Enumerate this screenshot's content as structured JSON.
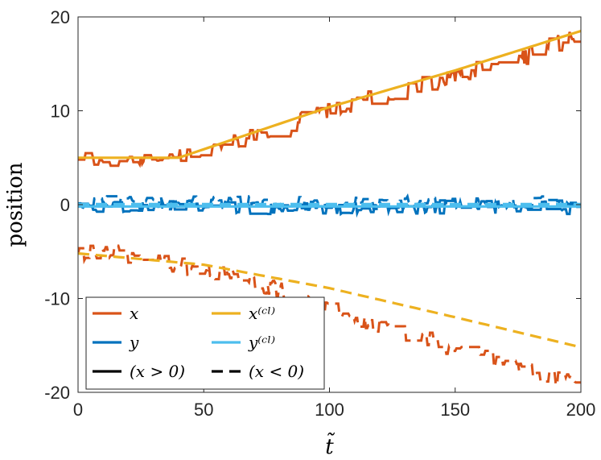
{
  "chart_data": {
    "type": "line",
    "xlabel": "t̃",
    "ylabel": "position",
    "xlim": [
      0,
      200
    ],
    "ylim": [
      -20,
      20
    ],
    "xticks": [
      0,
      50,
      100,
      150,
      200
    ],
    "yticks": [
      20,
      10,
      0,
      -10,
      -20
    ],
    "ytick_labels": [
      "20",
      "10",
      "0",
      "-10",
      "-20"
    ],
    "colors": {
      "x": "#D95319",
      "xcl": "#EDB120",
      "y": "#0072BD",
      "ycl": "#4DBEEE",
      "ink": "#000000"
    },
    "series": [
      {
        "name": "x",
        "branch": "x > 0",
        "style": "solid",
        "color_key": "x",
        "noisy": true,
        "noise": 0.45,
        "keypoints": [
          [
            0,
            4.8
          ],
          [
            35,
            4.7
          ],
          [
            60,
            6.5
          ],
          [
            100,
            10
          ],
          [
            150,
            13.8
          ],
          [
            180,
            16
          ],
          [
            200,
            18.3
          ]
        ]
      },
      {
        "name": "x(cl)",
        "branch": "x > 0",
        "style": "solid",
        "color_key": "xcl",
        "noisy": false,
        "keypoints": [
          [
            0,
            5.0
          ],
          [
            40,
            5.0
          ],
          [
            60,
            6.8
          ],
          [
            100,
            10.4
          ],
          [
            150,
            14.3
          ],
          [
            200,
            18.5
          ]
        ]
      },
      {
        "name": "y",
        "branch": "x > 0",
        "style": "solid",
        "color_key": "y",
        "noisy": true,
        "noise": 0.35,
        "keypoints": [
          [
            0,
            -0.3
          ],
          [
            200,
            -0.3
          ]
        ]
      },
      {
        "name": "y(cl)",
        "branch": "x > 0",
        "style": "solid",
        "color_key": "ycl",
        "noisy": false,
        "keypoints": [
          [
            0,
            -0.2
          ],
          [
            200,
            -0.2
          ]
        ]
      },
      {
        "name": "x",
        "branch": "x < 0",
        "style": "dashed",
        "color_key": "x",
        "noisy": true,
        "noise": 0.45,
        "keypoints": [
          [
            0,
            -5.3
          ],
          [
            10,
            -5.0
          ],
          [
            50,
            -7.0
          ],
          [
            80,
            -9.0
          ],
          [
            100,
            -11.5
          ],
          [
            150,
            -15.3
          ],
          [
            200,
            -19.2
          ]
        ]
      },
      {
        "name": "x(cl)",
        "branch": "x < 0",
        "style": "dashed",
        "color_key": "xcl",
        "noisy": false,
        "keypoints": [
          [
            0,
            -5.2
          ],
          [
            50,
            -6.4
          ],
          [
            100,
            -8.9
          ],
          [
            150,
            -12.0
          ],
          [
            200,
            -15.2
          ]
        ]
      },
      {
        "name": "y",
        "branch": "x < 0",
        "style": "dashed",
        "color_key": "y",
        "noisy": true,
        "noise": 0.35,
        "keypoints": [
          [
            0,
            0.2
          ],
          [
            200,
            0.2
          ]
        ]
      },
      {
        "name": "y(cl)",
        "branch": "x < 0",
        "style": "dashed",
        "color_key": "ycl",
        "noisy": false,
        "keypoints": [
          [
            0,
            0.05
          ],
          [
            200,
            0.05
          ]
        ]
      }
    ],
    "legend": {
      "placement": "bottom-left",
      "entries": [
        {
          "label": "x",
          "color_key": "x",
          "style": "solid"
        },
        {
          "label": "x⁽ᶜˡ⁾",
          "color_key": "xcl",
          "style": "solid"
        },
        {
          "label": "y",
          "color_key": "y",
          "style": "solid"
        },
        {
          "label": "y⁽ᶜˡ⁾",
          "color_key": "ycl",
          "style": "solid"
        },
        {
          "label": "(x > 0)",
          "color_key": "ink",
          "style": "solid"
        },
        {
          "label": "(x < 0)",
          "color_key": "ink",
          "style": "dashed"
        }
      ]
    }
  }
}
